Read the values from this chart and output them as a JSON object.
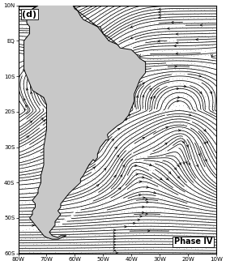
{
  "title": "(d)",
  "label": "Phase IV",
  "lon_min": -80,
  "lon_max": -10,
  "lat_min": -60,
  "lat_max": 10,
  "xticks": [
    -80,
    -70,
    -60,
    -50,
    -40,
    -30,
    -20,
    -10
  ],
  "yticks": [
    10,
    0,
    -10,
    -20,
    -30,
    -40,
    -50,
    -60
  ],
  "xlabel_labels": [
    "80W",
    "70W",
    "60W",
    "50W",
    "40W",
    "30W",
    "20W",
    "10W"
  ],
  "ylabel_labels": [
    "10N",
    "EQ",
    "10S",
    "20S",
    "30S",
    "40S",
    "50S",
    "60S"
  ],
  "background_color": "#ffffff",
  "stipple_color": "#aaaaaa",
  "coast_color": "#000000",
  "stream_color": "#000000"
}
